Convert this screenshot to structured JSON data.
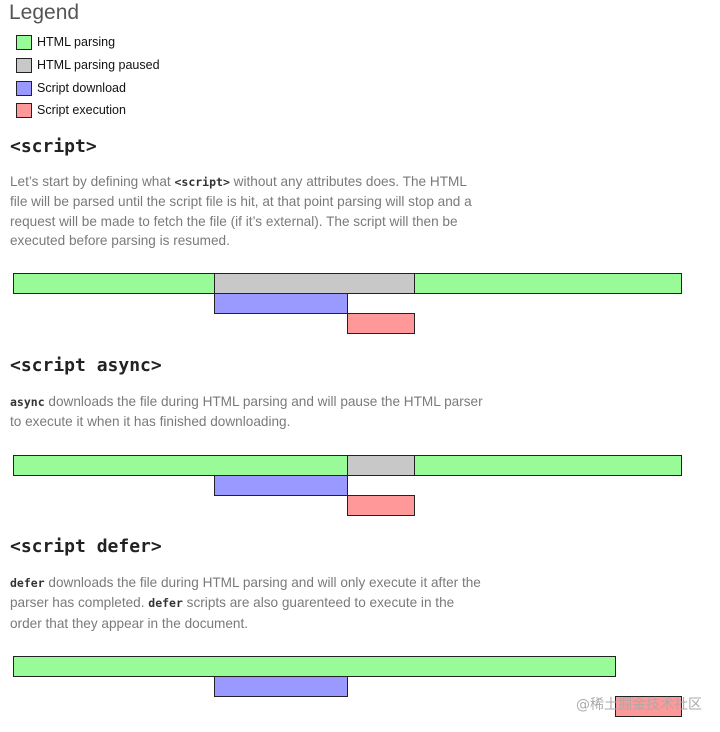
{
  "legend": {
    "title": "Legend",
    "items": [
      "HTML parsing",
      "HTML parsing paused",
      "Script download",
      "Script execution"
    ]
  },
  "sections": [
    {
      "heading": "<script>",
      "paragraph": [
        {
          "text": "Let’s start by defining what "
        },
        {
          "code": "<script>"
        },
        {
          "text": " without any attributes does. The HTML file will be parsed until the script file is hit, at that point parsing will stop and a request will be made to fetch the file (if it’s external). The script will then be executed before parsing is resumed."
        }
      ]
    },
    {
      "heading": "<script async>",
      "paragraph": [
        {
          "code": "async"
        },
        {
          "text": " downloads the file during HTML parsing and will pause the HTML parser to execute it when it has finished downloading."
        }
      ]
    },
    {
      "heading": "<script defer>",
      "paragraph": [
        {
          "code": "defer"
        },
        {
          "text": " downloads the file during HTML parsing and will only execute it after the parser has completed. "
        },
        {
          "code": "defer"
        },
        {
          "text": " scripts are also guarenteed to execute in the order that they appear in the document."
        }
      ]
    }
  ],
  "watermark": "@稀土掘金技术社区"
}
